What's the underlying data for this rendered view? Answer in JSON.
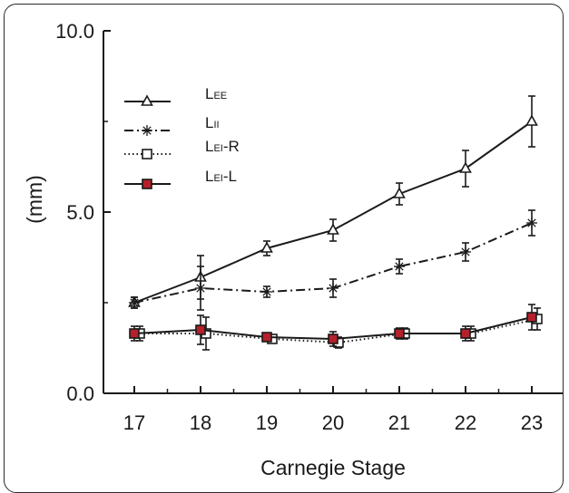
{
  "chart_data": {
    "type": "line",
    "xlabel": "Carnegie Stage",
    "ylabel": "(mm)",
    "categories": [
      "17",
      "18",
      "19",
      "20",
      "21",
      "22",
      "23"
    ],
    "y_ticks": [
      "0.0",
      "5.0",
      "10.0"
    ],
    "ylim": [
      0,
      10
    ],
    "legend_position": "top-left",
    "series": [
      {
        "name": "LEE",
        "name_main": "L",
        "name_sub": "EE",
        "marker": "triangle",
        "line_style": "solid",
        "color": "#1a1a1a",
        "marker_fill": "#ffffff",
        "values": [
          2.5,
          3.2,
          4.0,
          4.5,
          5.5,
          6.2,
          7.5
        ],
        "errors": [
          0.15,
          0.6,
          0.2,
          0.3,
          0.3,
          0.5,
          0.7
        ]
      },
      {
        "name": "LII",
        "name_main": "L",
        "name_sub": "II",
        "marker": "asterisk",
        "line_style": "dashdot",
        "color": "#1a1a1a",
        "marker_fill": "#ffffff",
        "values": [
          2.5,
          2.9,
          2.8,
          2.9,
          3.5,
          3.9,
          4.7
        ],
        "errors": [
          0.15,
          0.6,
          0.15,
          0.25,
          0.2,
          0.25,
          0.35
        ]
      },
      {
        "name": "LEI-R",
        "name_main": "L",
        "name_sub": "EI",
        "name_suffix": "-R",
        "marker": "square",
        "line_style": "dotted",
        "color": "#1a1a1a",
        "marker_fill": "#ffffff",
        "values": [
          1.65,
          1.65,
          1.5,
          1.4,
          1.65,
          1.65,
          2.05
        ],
        "errors": [
          0.2,
          0.45,
          0.1,
          0.15,
          0.15,
          0.2,
          0.3
        ]
      },
      {
        "name": "LEI-L",
        "name_main": "L",
        "name_sub": "EI",
        "name_suffix": "-L",
        "marker": "square",
        "line_style": "solid",
        "color": "#1a1a1a",
        "marker_fill": "#b5202a",
        "values": [
          1.65,
          1.75,
          1.55,
          1.5,
          1.65,
          1.65,
          2.1
        ],
        "errors": [
          0.2,
          0.4,
          0.1,
          0.2,
          0.15,
          0.2,
          0.35
        ]
      }
    ]
  }
}
